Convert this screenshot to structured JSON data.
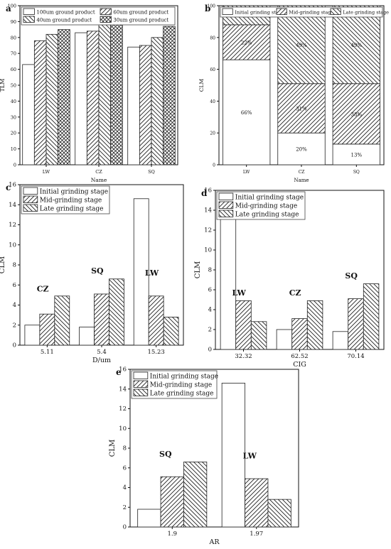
{
  "chart_data": [
    {
      "id": "a",
      "panel_label": "a",
      "type": "bar",
      "xlabel": "Name",
      "ylabel": "TLM",
      "ylim": [
        0,
        100
      ],
      "yticks": [
        0,
        10,
        20,
        30,
        40,
        50,
        60,
        70,
        80,
        90,
        100
      ],
      "categories": [
        "LW",
        "CZ",
        "SQ"
      ],
      "legend": "top-left",
      "legend_columns": 2,
      "series": [
        {
          "name": "100um ground product",
          "pattern": "none",
          "values": [
            63,
            83,
            74
          ]
        },
        {
          "name": "60um ground product",
          "pattern": "hatch-forward",
          "values": [
            78,
            84,
            75
          ]
        },
        {
          "name": "40um ground product",
          "pattern": "hatch-back",
          "values": [
            82,
            88,
            80
          ]
        },
        {
          "name": "30um ground product",
          "pattern": "crosshatch",
          "values": [
            85,
            92,
            87
          ]
        }
      ],
      "annotations": []
    },
    {
      "id": "b",
      "panel_label": "b",
      "type": "bar",
      "stacked": true,
      "xlabel": "Name",
      "ylabel": "CLM",
      "ylim": [
        0,
        100
      ],
      "yticks": [
        0,
        20,
        40,
        60,
        80,
        100
      ],
      "categories": [
        "LW",
        "CZ",
        "SQ"
      ],
      "legend": "top",
      "legend_columns": 3,
      "series": [
        {
          "name": "Initial grinding stage",
          "pattern": "none",
          "values": [
            66,
            20,
            13
          ],
          "labels": [
            "66%",
            "20%",
            "13%"
          ]
        },
        {
          "name": "Mid-grinding stage",
          "pattern": "hatch-forward",
          "values": [
            22,
            31,
            38
          ],
          "labels": [
            "22%",
            "31%",
            "38%"
          ]
        },
        {
          "name": "Late grinding stage",
          "pattern": "hatch-back",
          "values": [
            12,
            49,
            49
          ],
          "labels": [
            "12%",
            "49%",
            "49%"
          ]
        }
      ],
      "annotations": []
    },
    {
      "id": "c",
      "panel_label": "c",
      "type": "bar",
      "xlabel": "D/um",
      "ylabel": "CLM",
      "ylim": [
        0,
        16
      ],
      "yticks": [
        0,
        2,
        4,
        6,
        8,
        10,
        12,
        14,
        16
      ],
      "categories": [
        "5.11",
        "5.4",
        "15.23"
      ],
      "legend": "top-left",
      "legend_columns": 1,
      "series": [
        {
          "name": "Initial grinding stage",
          "pattern": "none",
          "values": [
            2.0,
            1.8,
            14.6
          ]
        },
        {
          "name": "Mid-grinding stage",
          "pattern": "hatch-forward",
          "values": [
            3.1,
            5.1,
            4.9
          ]
        },
        {
          "name": "Late grinding stage",
          "pattern": "hatch-back",
          "values": [
            4.9,
            6.6,
            2.8
          ]
        }
      ],
      "annotations": [
        {
          "text": "CZ",
          "category": 0,
          "value": 5.2
        },
        {
          "text": "SQ",
          "category": 1,
          "value": 7.0
        },
        {
          "text": "LW",
          "category": 2,
          "value": 6.8
        }
      ]
    },
    {
      "id": "d",
      "panel_label": "d",
      "type": "bar",
      "xlabel": "CIG",
      "ylabel": "CLM",
      "ylim": [
        0,
        16
      ],
      "yticks": [
        0,
        2,
        4,
        6,
        8,
        10,
        12,
        14,
        16
      ],
      "categories": [
        "32.32",
        "62.52",
        "70.14"
      ],
      "legend": "top-left",
      "legend_columns": 1,
      "series": [
        {
          "name": "Initial grinding stage",
          "pattern": "none",
          "values": [
            14.6,
            2.0,
            1.8
          ]
        },
        {
          "name": "Mid-grinding stage",
          "pattern": "hatch-forward",
          "values": [
            4.9,
            3.1,
            5.1
          ]
        },
        {
          "name": "Late grinding stage",
          "pattern": "hatch-back",
          "values": [
            2.8,
            4.9,
            6.6
          ]
        }
      ],
      "annotations": [
        {
          "text": "LW",
          "category": 0,
          "value": 5.3
        },
        {
          "text": "CZ",
          "category": 1,
          "value": 5.3
        },
        {
          "text": "SQ",
          "category": 2,
          "value": 7.0
        }
      ]
    },
    {
      "id": "e",
      "panel_label": "e",
      "type": "bar",
      "xlabel": "AR",
      "ylabel": "CLM",
      "ylim": [
        0,
        16
      ],
      "yticks": [
        0,
        2,
        4,
        6,
        8,
        10,
        12,
        14,
        16
      ],
      "categories": [
        "1.9",
        "1.97"
      ],
      "legend": "top-left",
      "legend_columns": 1,
      "series": [
        {
          "name": "Initial grinding stage",
          "pattern": "none",
          "values": [
            1.8,
            14.6
          ]
        },
        {
          "name": "Mid-grinding stage",
          "pattern": "hatch-forward",
          "values": [
            5.1,
            4.9
          ]
        },
        {
          "name": "Late grinding stage",
          "pattern": "hatch-back",
          "values": [
            6.6,
            2.8
          ]
        }
      ],
      "annotations": [
        {
          "text": "SQ",
          "category": 0,
          "value": 7.0
        },
        {
          "text": "LW",
          "category": 1,
          "value": 6.8
        }
      ]
    }
  ]
}
